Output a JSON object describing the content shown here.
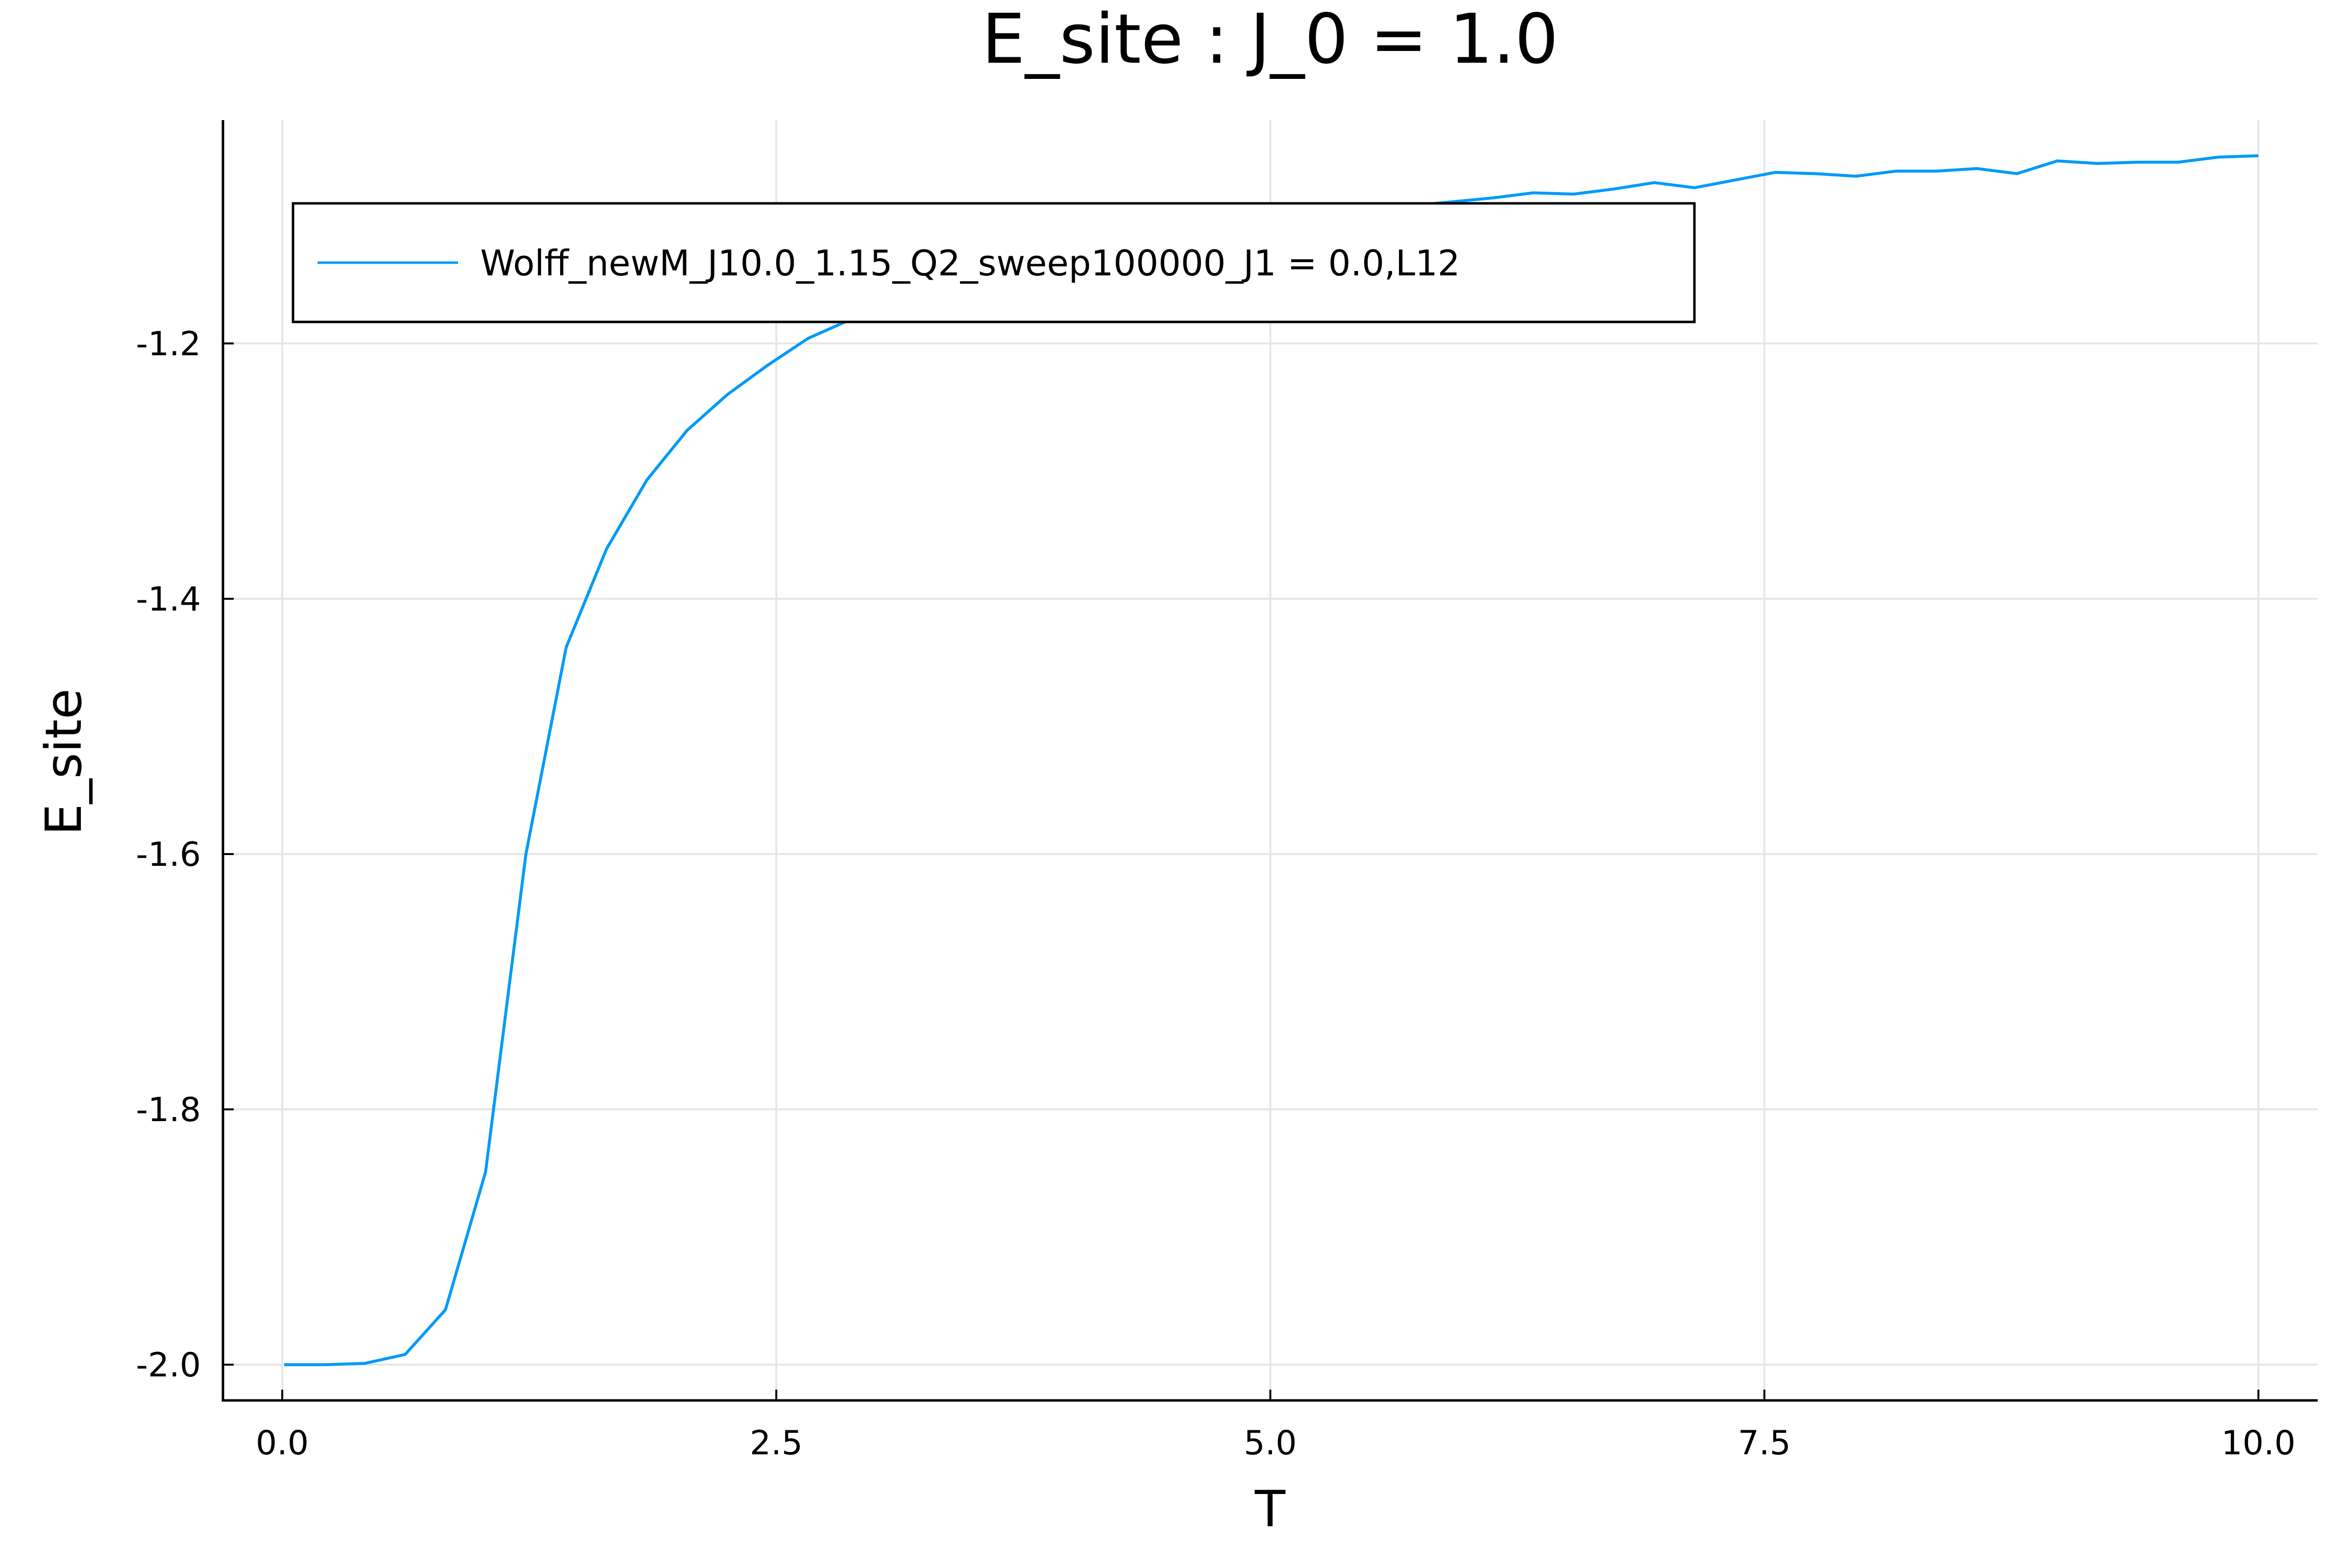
{
  "chart_data": {
    "type": "line",
    "title": "E_site : J_0 = 1.0",
    "xlabel": "T",
    "ylabel": "E_site",
    "xlim": [
      -0.3,
      10.3
    ],
    "ylim": [
      -2.028,
      -1.025
    ],
    "xticks": [
      0.0,
      2.5,
      5.0,
      7.5,
      10.0
    ],
    "xtick_labels": [
      "0.0",
      "2.5",
      "5.0",
      "7.5",
      "10.0"
    ],
    "yticks": [
      -2.0,
      -1.8,
      -1.6,
      -1.4,
      -1.2
    ],
    "ytick_labels": [
      "-2.0",
      "-1.8",
      "-1.6",
      "-1.4",
      "-1.2"
    ],
    "grid": true,
    "legend_position": "top-left",
    "series": [
      {
        "name": "Wolff_newM_J10.0_1.15_Q2_sweep100000_J1 = 0.0,L12",
        "color": "#009af9",
        "x": [
          0.01,
          0.214,
          0.418,
          0.622,
          0.826,
          1.029,
          1.233,
          1.437,
          1.641,
          1.845,
          2.049,
          2.253,
          2.457,
          2.661,
          2.865,
          3.069,
          3.273,
          3.476,
          3.68,
          3.884,
          4.088,
          4.292,
          4.496,
          4.7,
          4.904,
          5.108,
          5.312,
          5.516,
          5.72,
          5.924,
          6.127,
          6.331,
          6.535,
          6.739,
          6.943,
          7.147,
          7.351,
          7.555,
          7.759,
          7.963,
          8.167,
          8.371,
          8.575,
          8.778,
          8.982,
          9.186,
          9.39,
          9.594,
          9.798,
          10.0
        ],
        "y": [
          -2.0,
          -2.0,
          -1.999,
          -1.992,
          -1.957,
          -1.849,
          -1.6,
          -1.438,
          -1.361,
          -1.307,
          -1.268,
          -1.24,
          -1.217,
          -1.196,
          -1.182,
          -1.17,
          -1.159,
          -1.149,
          -1.141,
          -1.134,
          -1.128,
          -1.122,
          -1.117,
          -1.113,
          -1.108,
          -1.104,
          -1.1,
          -1.096,
          -1.092,
          -1.089,
          -1.086,
          -1.082,
          -1.083,
          -1.079,
          -1.074,
          -1.078,
          -1.072,
          -1.066,
          -1.067,
          -1.069,
          -1.065,
          -1.065,
          -1.063,
          -1.067,
          -1.057,
          -1.059,
          -1.058,
          -1.058,
          -1.054,
          -1.053
        ]
      }
    ]
  }
}
